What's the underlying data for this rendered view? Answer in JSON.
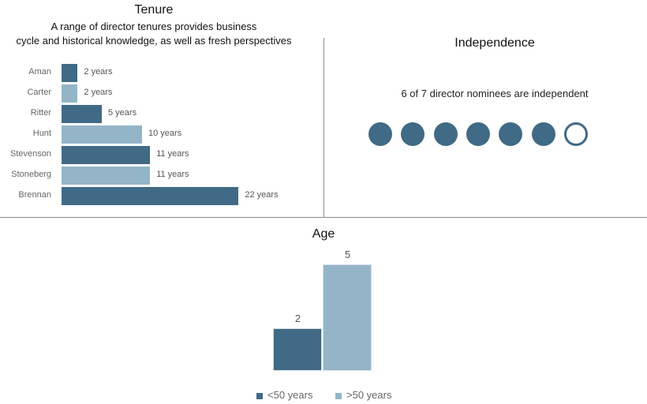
{
  "colors": {
    "dark": "#406a85",
    "light": "#94b5c8",
    "divider": "#8c8c8c"
  },
  "tenure": {
    "title": "Tenure",
    "subtitle_line1": "A range of director tenures provides business",
    "subtitle_line2": "cycle and historical knowledge, as well as fresh perspectives"
  },
  "independence": {
    "title": "Independence",
    "caption": "6 of 7 director nominees are independent",
    "independent": 6,
    "total": 7
  },
  "age": {
    "title": "Age",
    "legend": [
      {
        "label": "<50 years",
        "color": "dark"
      },
      {
        "label": ">50 years",
        "color": "light"
      }
    ]
  },
  "chart_data": [
    {
      "type": "bar",
      "orientation": "horizontal",
      "title": "Tenure",
      "categories": [
        "Aman",
        "Carter",
        "Ritter",
        "Hunt",
        "Stevenson",
        "Stoneberg",
        "Brennan"
      ],
      "values": [
        2,
        2,
        5,
        10,
        11,
        11,
        22
      ],
      "value_labels": [
        "2 years",
        "2 years",
        "5 years",
        "10 years",
        "11 years",
        "11 years",
        "22 years"
      ],
      "bar_colors": [
        "dark",
        "light",
        "dark",
        "light",
        "dark",
        "light",
        "dark"
      ]
    },
    {
      "type": "bar",
      "title": "Age",
      "categories": [
        "<50 years",
        ">50 years"
      ],
      "values": [
        2,
        5
      ],
      "value_labels": [
        "2",
        "5"
      ],
      "bar_colors": [
        "dark",
        "light"
      ]
    }
  ]
}
